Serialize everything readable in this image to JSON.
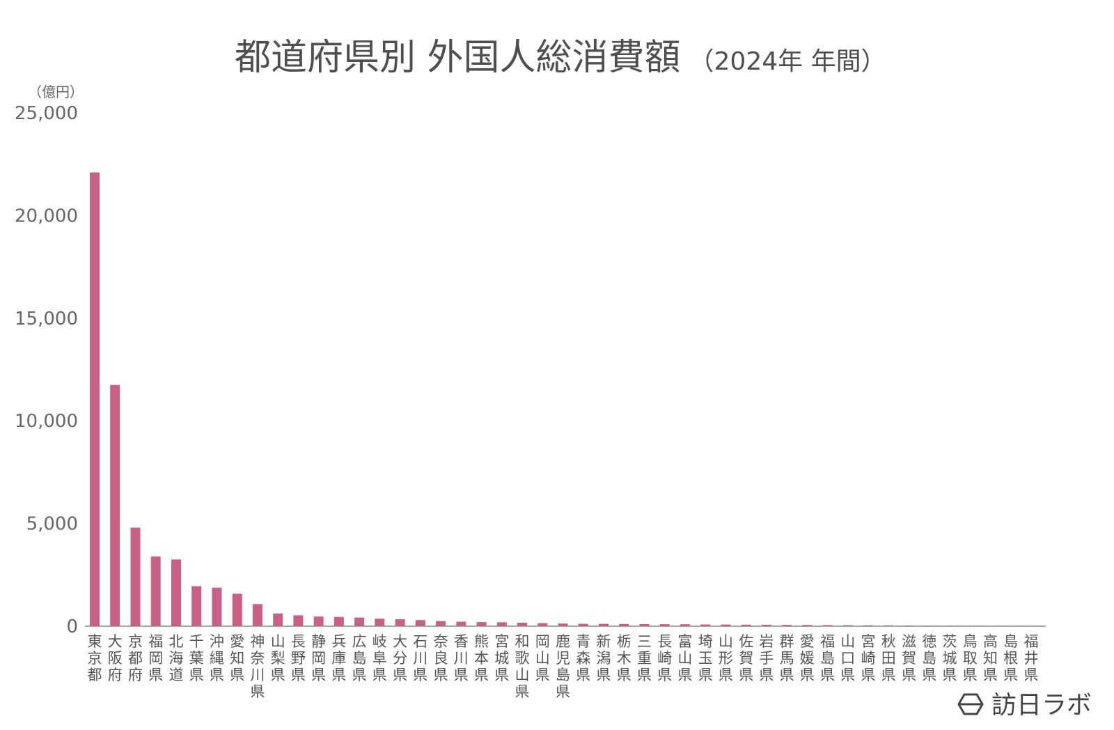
{
  "brand": {
    "name": "訪日ラボ",
    "icon": "hexagon-logo-icon"
  },
  "colors": {
    "bar": "#c96085",
    "axis": "#888888",
    "text": "#555555"
  },
  "chart_data": {
    "type": "bar",
    "title": "都道府県別 外国人総消費額",
    "subtitle": "（2024年 年間）",
    "ylabel": "（億円）",
    "xlabel": "",
    "ylim": [
      0,
      25000
    ],
    "yticks": [
      0,
      5000,
      10000,
      15000,
      20000,
      25000
    ],
    "ytick_labels": [
      "0",
      "5,000",
      "10,000",
      "15,000",
      "20,000",
      "25,000"
    ],
    "grid": false,
    "categories": [
      "東京都",
      "大阪府",
      "京都府",
      "福岡県",
      "北海道",
      "千葉県",
      "沖縄県",
      "愛知県",
      "神奈川県",
      "山梨県",
      "長野県",
      "静岡県",
      "兵庫県",
      "広島県",
      "岐阜県",
      "大分県",
      "石川県",
      "奈良県",
      "香川県",
      "熊本県",
      "宮城県",
      "和歌山県",
      "岡山県",
      "鹿児島県",
      "青森県",
      "新潟県",
      "栃木県",
      "三重県",
      "長崎県",
      "富山県",
      "埼玉県",
      "山形県",
      "佐賀県",
      "岩手県",
      "群馬県",
      "愛媛県",
      "福島県",
      "山口県",
      "宮崎県",
      "秋田県",
      "滋賀県",
      "徳島県",
      "茨城県",
      "鳥取県",
      "高知県",
      "島根県",
      "福井県"
    ],
    "values": [
      22100,
      11750,
      4800,
      3400,
      3250,
      1950,
      1880,
      1580,
      1080,
      620,
      530,
      470,
      450,
      420,
      370,
      340,
      300,
      250,
      220,
      200,
      190,
      170,
      150,
      130,
      120,
      115,
      110,
      105,
      100,
      95,
      85,
      80,
      75,
      70,
      65,
      60,
      55,
      50,
      45,
      40,
      35,
      30,
      28,
      25,
      22,
      18,
      15
    ]
  }
}
